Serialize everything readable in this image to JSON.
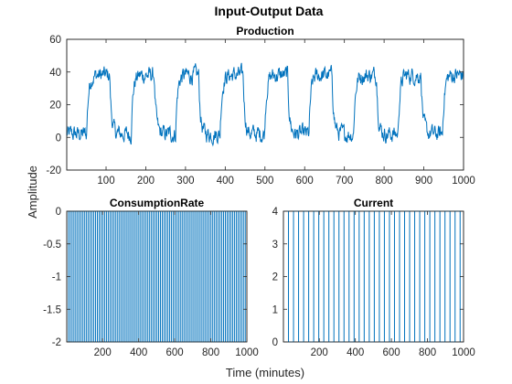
{
  "figure": {
    "title": "Input-Output Data",
    "xlabel": "Time (minutes)",
    "ylabel": "Amplitude",
    "line_color": "#0072BD"
  },
  "chart_data": [
    {
      "type": "line",
      "title": "Production",
      "xlim": [
        1,
        1000
      ],
      "ylim": [
        -20,
        60
      ],
      "xticks": [
        100,
        200,
        300,
        400,
        500,
        600,
        700,
        800,
        900,
        1000
      ],
      "yticks": [
        -20,
        0,
        20,
        40,
        60
      ],
      "signal": {
        "kind": "pulse_train",
        "period": 112,
        "first_rise": 52,
        "high_duration": 58,
        "low_level": 2,
        "high_level": 38,
        "noise_amplitude": 5,
        "time_constant": 5
      }
    },
    {
      "type": "line",
      "title": "ConsumptionRate",
      "xlim": [
        1,
        1000
      ],
      "ylim": [
        -2,
        0
      ],
      "xticks": [
        200,
        400,
        600,
        800,
        1000
      ],
      "yticks": [
        -2,
        -1.5,
        -1,
        -0.5,
        0
      ],
      "signal": {
        "kind": "square_wave",
        "period": 20,
        "low_level": -2,
        "high_level": 0
      }
    },
    {
      "type": "line",
      "title": "Current",
      "xlim": [
        1,
        1000
      ],
      "ylim": [
        0,
        4
      ],
      "xticks": [
        200,
        400,
        600,
        800,
        1000
      ],
      "yticks": [
        0,
        1,
        2,
        3,
        4
      ],
      "signal": {
        "kind": "square_wave",
        "period": 56,
        "high_duration": 28,
        "low_level": 0,
        "high_level": 4
      }
    }
  ]
}
